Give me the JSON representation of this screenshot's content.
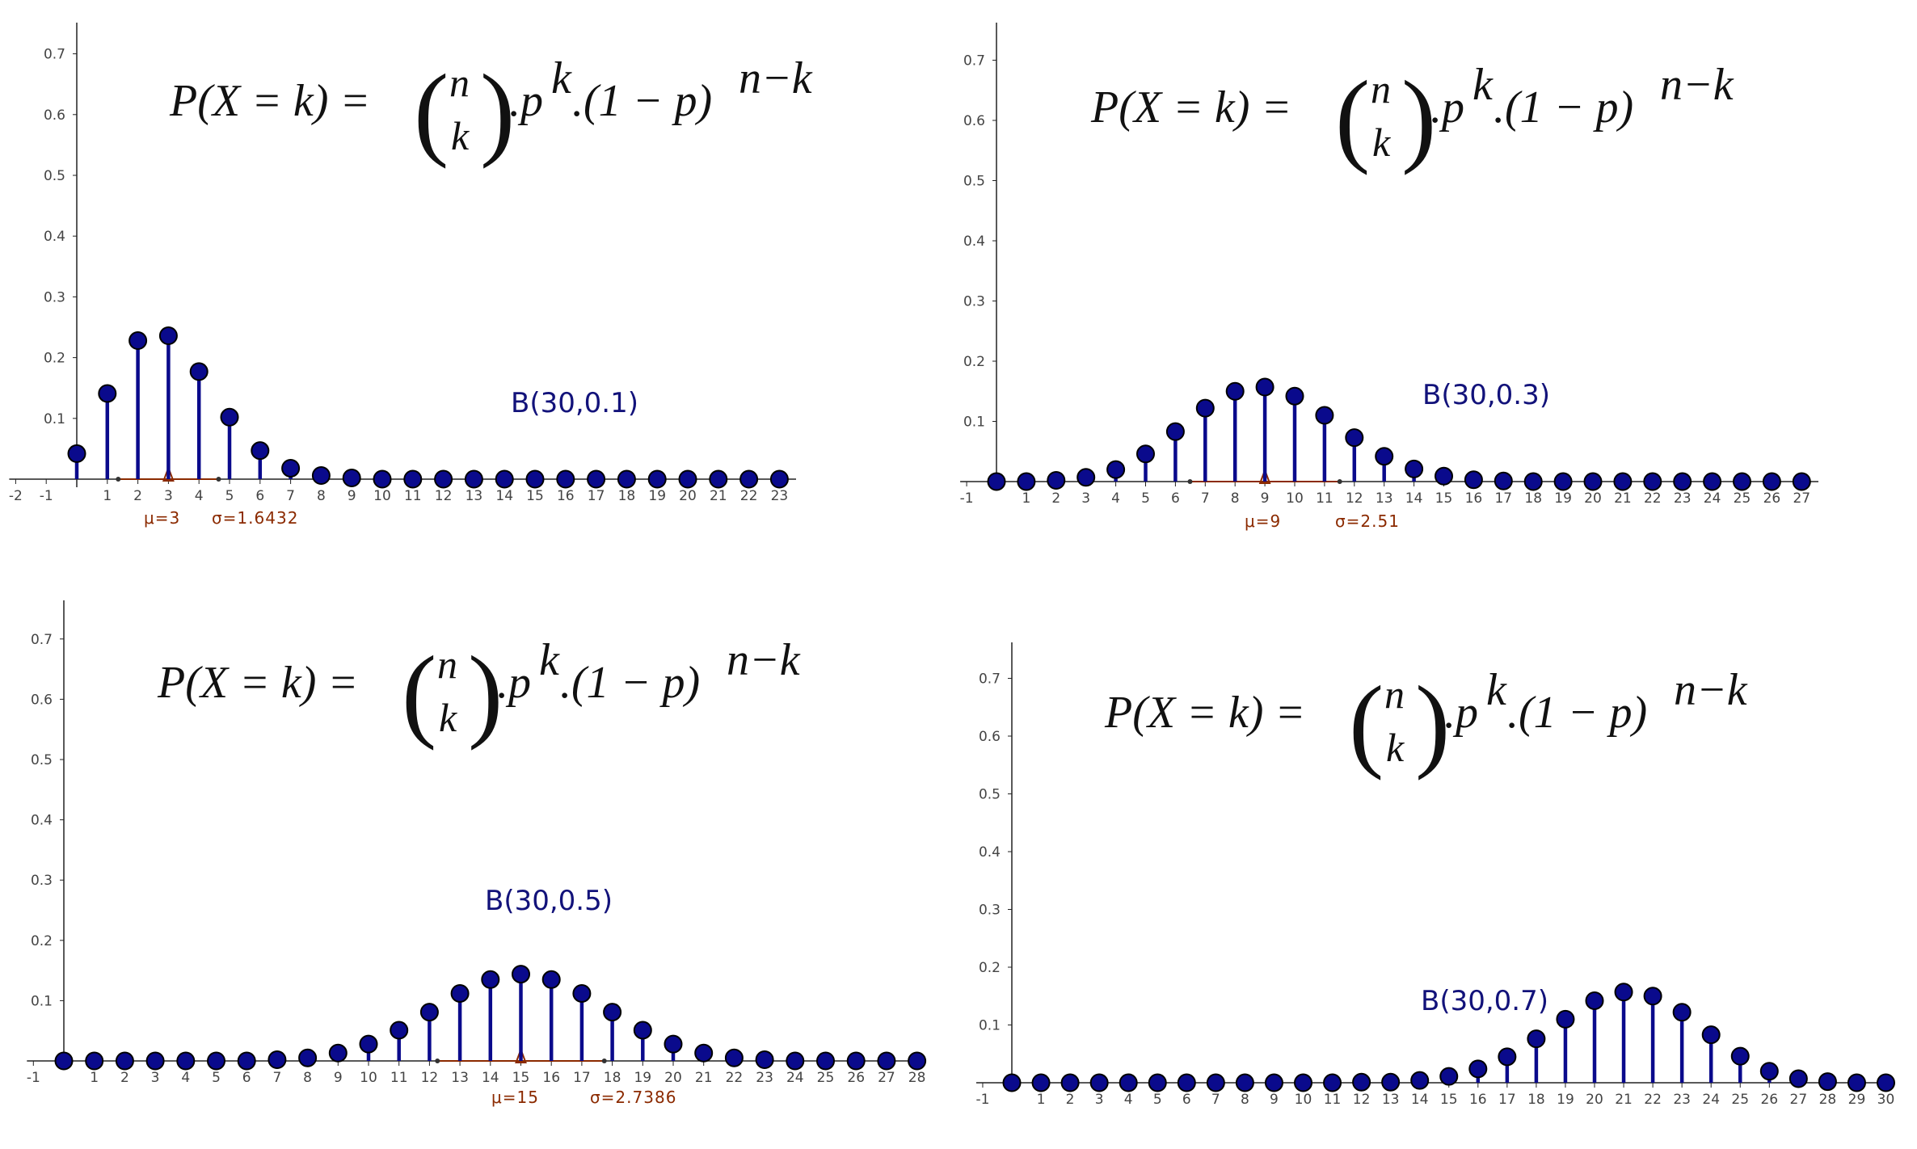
{
  "formula": {
    "lhs": "P(X = k) =",
    "n": "n",
    "k": "k",
    "p": ".p",
    "k_exp": "k",
    "factor": ".(1 − p)",
    "nk_exp": "n−k"
  },
  "chart_data": [
    {
      "type": "scatter",
      "style": "stem",
      "title": "B(30,0.1)",
      "x": [
        0,
        1,
        2,
        3,
        4,
        5,
        6,
        7,
        8,
        9,
        10,
        11,
        12,
        13,
        14,
        15,
        16,
        17,
        18,
        19,
        20,
        21,
        22,
        23
      ],
      "y": [
        0.042,
        0.141,
        0.228,
        0.236,
        0.177,
        0.102,
        0.047,
        0.018,
        0.006,
        0.002,
        0,
        0,
        0,
        0,
        0,
        0,
        0,
        0,
        0,
        0,
        0,
        0,
        0,
        0
      ],
      "xlim": [
        -2,
        23
      ],
      "ylim": [
        0,
        0.7
      ],
      "x_ticks": [
        -2,
        -1,
        1,
        2,
        3,
        4,
        5,
        6,
        7,
        8,
        9,
        10,
        11,
        12,
        13,
        14,
        15,
        16,
        17,
        18,
        19,
        20,
        21,
        22,
        23
      ],
      "y_ticks": [
        0.1,
        0.2,
        0.3,
        0.4,
        0.5,
        0.6,
        0.7
      ],
      "mu": 3,
      "sigma": 1.6432,
      "mu_label": "μ=3",
      "sigma_label": "σ=1.6432",
      "grid": false,
      "color": "#0a0a8c"
    },
    {
      "type": "scatter",
      "style": "stem",
      "title": "B(30,0.3)",
      "x": [
        0,
        1,
        2,
        3,
        4,
        5,
        6,
        7,
        8,
        9,
        10,
        11,
        12,
        13,
        14,
        15,
        16,
        17,
        18,
        19,
        20,
        21,
        22,
        23,
        24,
        25,
        26,
        27
      ],
      "y": [
        0,
        0,
        0.002,
        0.007,
        0.02,
        0.046,
        0.083,
        0.122,
        0.15,
        0.157,
        0.142,
        0.11,
        0.073,
        0.042,
        0.021,
        0.009,
        0.003,
        0.001,
        0,
        0,
        0,
        0,
        0,
        0,
        0,
        0,
        0,
        0
      ],
      "xlim": [
        -1,
        27
      ],
      "ylim": [
        0,
        0.7
      ],
      "x_ticks": [
        -1,
        1,
        2,
        3,
        4,
        5,
        6,
        7,
        8,
        9,
        10,
        11,
        12,
        13,
        14,
        15,
        16,
        17,
        18,
        19,
        20,
        21,
        22,
        23,
        24,
        25,
        26,
        27
      ],
      "y_ticks": [
        0.1,
        0.2,
        0.3,
        0.4,
        0.5,
        0.6,
        0.7
      ],
      "mu": 9,
      "sigma": 2.51,
      "mu_label": "μ=9",
      "sigma_label": "σ=2.51",
      "grid": false,
      "color": "#0a0a8c"
    },
    {
      "type": "scatter",
      "style": "stem",
      "title": "B(30,0.5)",
      "x": [
        0,
        1,
        2,
        3,
        4,
        5,
        6,
        7,
        8,
        9,
        10,
        11,
        12,
        13,
        14,
        15,
        16,
        17,
        18,
        19,
        20,
        21,
        22,
        23,
        24,
        25,
        26,
        27,
        28
      ],
      "y": [
        0,
        0,
        0,
        0,
        0,
        0,
        0,
        0.002,
        0.005,
        0.013,
        0.028,
        0.051,
        0.081,
        0.112,
        0.135,
        0.144,
        0.135,
        0.112,
        0.081,
        0.051,
        0.028,
        0.013,
        0.005,
        0.002,
        0,
        0,
        0,
        0,
        0
      ],
      "xlim": [
        -1,
        28
      ],
      "ylim": [
        0,
        0.7
      ],
      "x_ticks": [
        -1,
        1,
        2,
        3,
        4,
        5,
        6,
        7,
        8,
        9,
        10,
        11,
        12,
        13,
        14,
        15,
        16,
        17,
        18,
        19,
        20,
        21,
        22,
        23,
        24,
        25,
        26,
        27,
        28
      ],
      "y_ticks": [
        0.1,
        0.2,
        0.3,
        0.4,
        0.5,
        0.6,
        0.7
      ],
      "mu": 15,
      "sigma": 2.7386,
      "mu_label": "μ=15",
      "sigma_label": "σ=2.7386",
      "grid": false,
      "color": "#0a0a8c"
    },
    {
      "type": "scatter",
      "style": "stem",
      "title": "B(30,0.7)",
      "x": [
        0,
        1,
        2,
        3,
        4,
        5,
        6,
        7,
        8,
        9,
        10,
        11,
        12,
        13,
        14,
        15,
        16,
        17,
        18,
        19,
        20,
        21,
        22,
        23,
        24,
        25,
        26,
        27,
        28,
        29,
        30
      ],
      "y": [
        0,
        0,
        0,
        0,
        0,
        0,
        0,
        0,
        0,
        0,
        0,
        0,
        0.001,
        0.001,
        0.004,
        0.011,
        0.024,
        0.045,
        0.076,
        0.11,
        0.142,
        0.157,
        0.15,
        0.122,
        0.083,
        0.046,
        0.02,
        0.007,
        0.002,
        0,
        0
      ],
      "xlim": [
        -1,
        30
      ],
      "ylim": [
        0,
        0.7
      ],
      "x_ticks": [
        -1,
        1,
        2,
        3,
        4,
        5,
        6,
        7,
        8,
        9,
        10,
        11,
        12,
        13,
        14,
        15,
        16,
        17,
        18,
        19,
        20,
        21,
        22,
        23,
        24,
        25,
        26,
        27,
        28,
        29,
        30
      ],
      "y_ticks": [
        0.1,
        0.2,
        0.3,
        0.4,
        0.5,
        0.6,
        0.7
      ],
      "grid": false,
      "color": "#0a0a8c"
    }
  ]
}
